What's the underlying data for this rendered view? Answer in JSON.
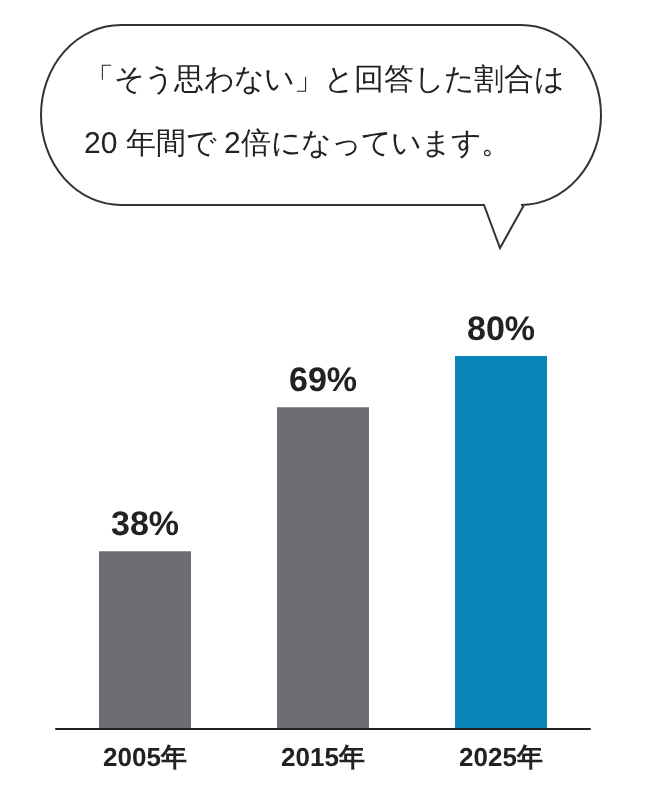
{
  "chart_data": {
    "type": "bar",
    "categories": [
      "2005年",
      "2015年",
      "2025年"
    ],
    "values": [
      38,
      69,
      80
    ],
    "colors": [
      "#6d6e71",
      "#6d6e71",
      "#0a85b8"
    ],
    "value_labels": [
      "38%",
      "69%",
      "80%"
    ],
    "annotations": [
      "「そう思わない」と回答した割合は 20 年間で 2倍になっています。"
    ],
    "grid": false
  }
}
